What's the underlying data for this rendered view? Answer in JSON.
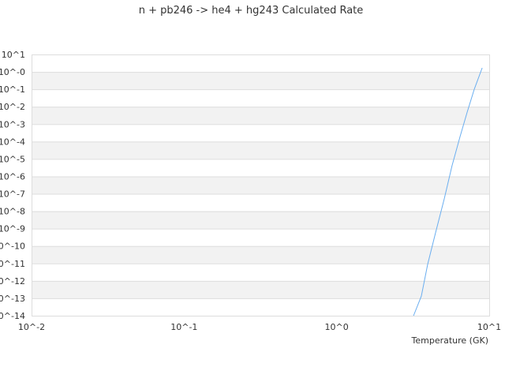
{
  "chart_data": {
    "type": "line",
    "title": "n + pb246 -> he4 + hg243 Calculated Rate",
    "xlabel": "Temperature (GK)",
    "ylabel": "",
    "x_scale": "log",
    "y_scale": "log",
    "xlim": [
      0.01,
      10
    ],
    "ylim": [
      1e-14,
      10
    ],
    "x_tick_labels": [
      "10^-2",
      "10^-1",
      "10^0",
      "10^1"
    ],
    "y_tick_labels": [
      "10^1",
      "10^-0",
      "10^-1",
      "10^-2",
      "10^-3",
      "10^-4",
      "10^-5",
      "10^-6",
      "10^-7",
      "10^-8",
      "10^-9",
      "10^-10",
      "10^-11",
      "10^-12",
      "10^-13",
      "10^-14"
    ],
    "grid": true,
    "legend": "none",
    "series": [
      {
        "color": "#6aaef0",
        "x": [
          3.19,
          3.59,
          3.95,
          4.45,
          5.07,
          5.71,
          6.44,
          7.17,
          7.98,
          8.99
        ],
        "y": [
          1e-14,
          1.35e-13,
          8.9e-12,
          5.8e-10,
          5.1e-08,
          4.1e-06,
          0.000195,
          0.0049,
          0.102,
          1.7
        ]
      }
    ]
  }
}
